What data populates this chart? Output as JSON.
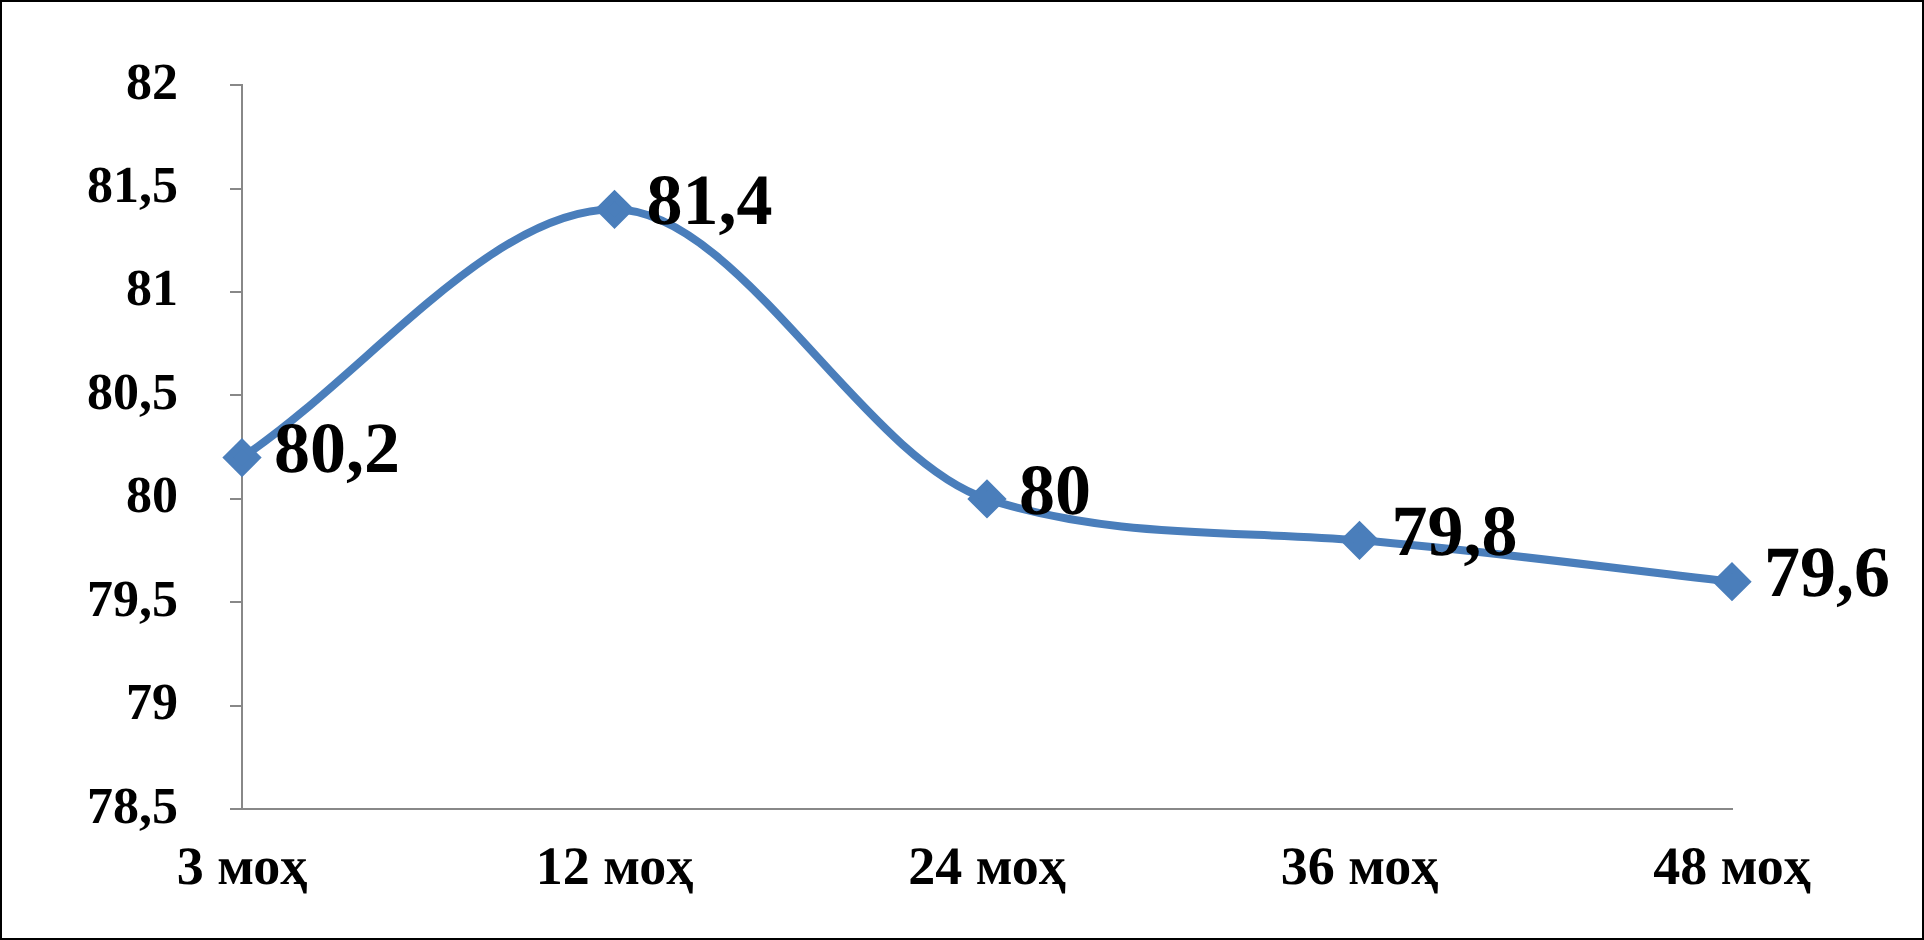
{
  "chart_data": {
    "type": "line",
    "categories": [
      "3 моҳ",
      "12 моҳ",
      "24 моҳ",
      "36 моҳ",
      "48 моҳ"
    ],
    "series": [
      {
        "color": "#4a7ebb",
        "values": [
          80.2,
          81.4,
          80,
          79.8,
          79.6
        ],
        "value_labels": [
          "80,2",
          "81,4",
          "80",
          "79,8",
          "79,6"
        ]
      }
    ],
    "ylim": [
      78.5,
      82
    ],
    "yticks": [
      {
        "value": 78.5,
        "label": "78,5"
      },
      79,
      {
        "value": 79.5,
        "label": "79,5"
      },
      80,
      {
        "value": 80.5,
        "label": "80,5"
      },
      81,
      {
        "value": 81.5,
        "label": "81,5"
      },
      82
    ],
    "marker": "diamond",
    "line_style": "solid"
  }
}
